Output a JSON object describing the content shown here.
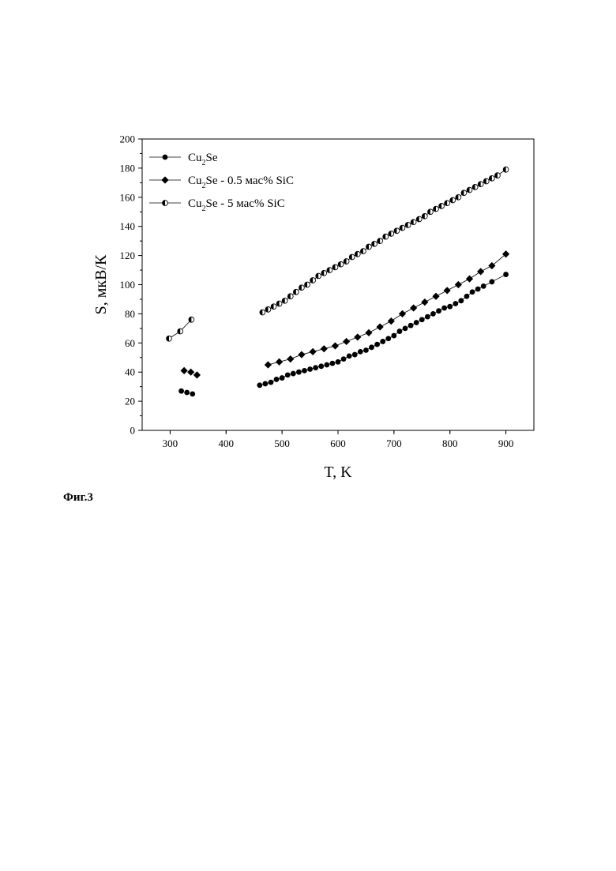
{
  "figure": {
    "caption": "Фиг.3"
  },
  "chart_data": {
    "type": "scatter",
    "xlabel": "T, K",
    "ylabel": "S, мкВ/К",
    "xlim": [
      250,
      950
    ],
    "ylim": [
      0,
      200
    ],
    "xticks": [
      300,
      400,
      500,
      600,
      700,
      800,
      900
    ],
    "yticks": [
      0,
      20,
      40,
      60,
      80,
      100,
      120,
      140,
      160,
      180,
      200
    ],
    "grid": false,
    "legend_position": "top-left",
    "series": [
      {
        "name": "Cu2Se",
        "legend": {
          "base": "Cu",
          "sub": "2",
          "rest": "Se"
        },
        "marker": "filled-circle",
        "color": "#000000",
        "segments": [
          {
            "x": [
              320,
              330,
              340
            ],
            "y": [
              27,
              26,
              25
            ],
            "line": false
          },
          {
            "x": [
              460,
              470,
              480,
              490,
              500,
              510,
              520,
              530,
              540,
              550,
              560,
              570,
              580,
              590,
              600,
              610,
              620,
              630,
              640,
              650,
              660,
              670,
              680,
              690,
              700,
              710,
              720,
              730,
              740,
              750,
              760,
              770,
              780,
              790,
              800,
              810,
              820,
              830,
              840,
              850,
              860,
              875,
              900
            ],
            "y": [
              31,
              32,
              33,
              35,
              36,
              38,
              39,
              40,
              41,
              42,
              43,
              44,
              45,
              46,
              47,
              49,
              51,
              52,
              54,
              55,
              57,
              59,
              61,
              63,
              65,
              68,
              70,
              72,
              74,
              76,
              78,
              80,
              82,
              84,
              85,
              87,
              89,
              92,
              95,
              97,
              99,
              102,
              107
            ],
            "line": true
          }
        ]
      },
      {
        "name": "Cu2Se - 0.5 мас% SiC",
        "legend": {
          "base": "Cu",
          "sub": "2",
          "rest": "Se - 0.5 мас% SiC"
        },
        "marker": "filled-diamond",
        "color": "#000000",
        "segments": [
          {
            "x": [
              325,
              337,
              348
            ],
            "y": [
              41,
              40,
              38
            ],
            "line": false
          },
          {
            "x": [
              475,
              495,
              515,
              535,
              555,
              575,
              595,
              615,
              635,
              655,
              675,
              695,
              715,
              735,
              755,
              775,
              795,
              815,
              835,
              855,
              875,
              900
            ],
            "y": [
              45,
              47,
              49,
              52,
              54,
              56,
              58,
              61,
              64,
              67,
              71,
              75,
              80,
              84,
              88,
              92,
              96,
              100,
              104,
              109,
              113,
              121
            ],
            "line": true
          }
        ]
      },
      {
        "name": "Cu2Se - 5 мас% SiC",
        "legend": {
          "base": "Cu",
          "sub": "2",
          "rest": "Se - 5 мас% SiC"
        },
        "marker": "half-circle",
        "color": "#000000",
        "segments": [
          {
            "x": [
              298,
              318,
              338
            ],
            "y": [
              63,
              68,
              76
            ],
            "line": true
          },
          {
            "x": [
              465,
              475,
              485,
              495,
              505,
              515,
              525,
              535,
              545,
              555,
              565,
              575,
              585,
              595,
              605,
              615,
              625,
              635,
              645,
              655,
              665,
              675,
              685,
              695,
              705,
              715,
              725,
              735,
              745,
              755,
              765,
              775,
              785,
              795,
              805,
              815,
              825,
              835,
              845,
              855,
              865,
              875,
              885,
              900
            ],
            "y": [
              81,
              83,
              85,
              87,
              89,
              92,
              95,
              98,
              100,
              103,
              106,
              108,
              110,
              112,
              114,
              116,
              119,
              121,
              123,
              126,
              128,
              130,
              133,
              135,
              137,
              139,
              141,
              143,
              145,
              147,
              150,
              152,
              154,
              156,
              158,
              160,
              163,
              165,
              167,
              169,
              171,
              173,
              175,
              179
            ],
            "line": true
          }
        ]
      }
    ]
  }
}
